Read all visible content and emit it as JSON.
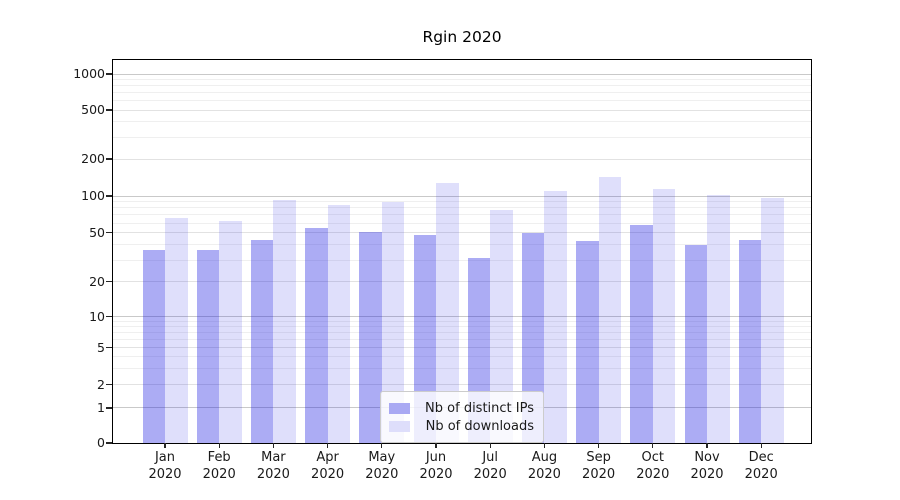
{
  "title": "Rgin 2020",
  "chart_data": {
    "type": "bar",
    "title": "Rgin 2020",
    "x_labels": [
      {
        "month": "Jan",
        "year": "2020"
      },
      {
        "month": "Feb",
        "year": "2020"
      },
      {
        "month": "Mar",
        "year": "2020"
      },
      {
        "month": "Apr",
        "year": "2020"
      },
      {
        "month": "May",
        "year": "2020"
      },
      {
        "month": "Jun",
        "year": "2020"
      },
      {
        "month": "Jul",
        "year": "2020"
      },
      {
        "month": "Aug",
        "year": "2020"
      },
      {
        "month": "Sep",
        "year": "2020"
      },
      {
        "month": "Oct",
        "year": "2020"
      },
      {
        "month": "Nov",
        "year": "2020"
      },
      {
        "month": "Dec",
        "year": "2020"
      }
    ],
    "series": [
      {
        "name": "Nb of distinct IPs",
        "swatch_color": "#a9a9f3",
        "fill_color": "rgba(25,25,225,0.36)",
        "values": [
          36,
          36,
          44,
          55,
          51,
          48,
          31,
          50,
          43,
          58,
          40,
          44
        ]
      },
      {
        "name": "Nb of downloads",
        "swatch_color": "#dedefb",
        "fill_color": "rgba(25,25,225,0.14)",
        "values": [
          66,
          62,
          93,
          84,
          90,
          127,
          77,
          110,
          142,
          115,
          102,
          97
        ]
      }
    ],
    "y_ticks": [
      0,
      1,
      2,
      5,
      10,
      20,
      50,
      100,
      200,
      500,
      1000
    ],
    "y_minor_ticks": [
      3,
      4,
      6,
      7,
      8,
      9,
      30,
      40,
      60,
      70,
      80,
      90,
      300,
      400,
      600,
      700,
      800,
      900
    ],
    "yscale": "symlog",
    "ylim": [
      0,
      1100
    ],
    "grid": true,
    "legend_position": "lower center"
  }
}
